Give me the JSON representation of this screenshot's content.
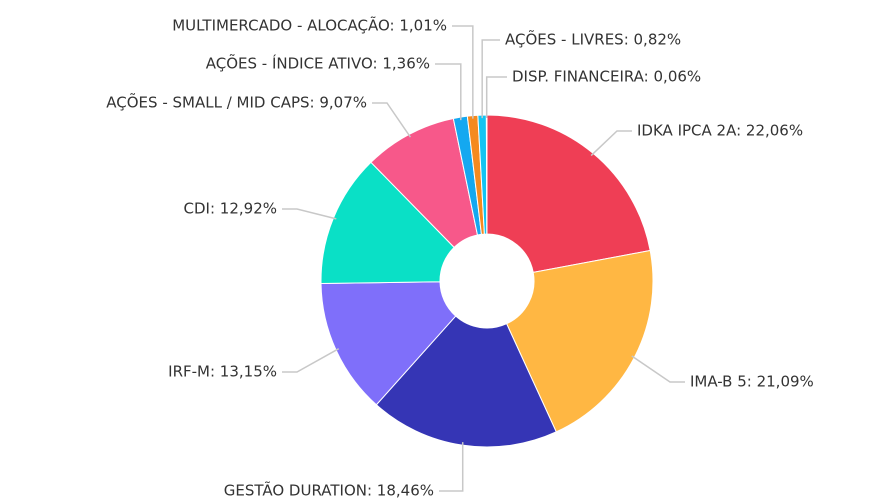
{
  "chart_data": {
    "type": "donut",
    "values": [
      22.06,
      21.09,
      18.46,
      13.15,
      12.92,
      9.07,
      1.36,
      1.01,
      0.82,
      0.06
    ],
    "value_labels": [
      "IDKA IPCA 2A: 22,06%",
      "IMA-B 5: 21,09%",
      "GESTÃO DURATION: 18,46%",
      "IRF-M: 13,15%",
      "CDI: 12,92%",
      "AÇÕES - SMALL / MID CAPS: 9,07%",
      "AÇÕES - ÍNDICE ATIVO: 1,36%",
      "MULTIMERCADO - ALOCAÇÃO: 1,01%",
      "AÇÕES - LIVRES: 0,82%",
      "DISP. FINANCEIRA: 0,06%"
    ],
    "colors": [
      "#ef3e55",
      "#ffb743",
      "#3535b5",
      "#7f6ffa",
      "#0ae0c6",
      "#f7588a",
      "#14a8f0",
      "#f58a1f",
      "#14c4f2",
      "#e0e0e0"
    ]
  }
}
